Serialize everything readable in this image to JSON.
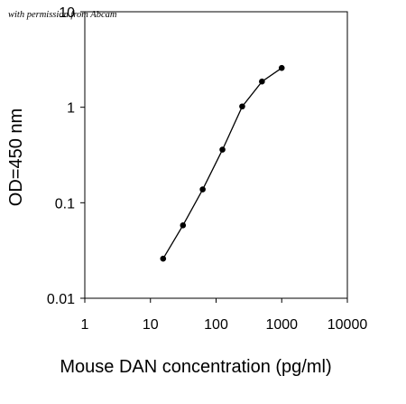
{
  "watermark": "with permission from Abcam",
  "colors": {
    "axis": "#000000",
    "line": "#000000",
    "marker": "#000000",
    "background": "#ffffff"
  },
  "chart_data": {
    "type": "line",
    "title": "",
    "xlabel": "Mouse DAN concentration (pg/ml)",
    "ylabel": "OD=450 nm",
    "xscale": "log",
    "yscale": "log",
    "xlim": [
      1,
      10000
    ],
    "ylim": [
      0.01,
      10
    ],
    "xticks": [
      1,
      10,
      100,
      1000,
      10000
    ],
    "xtick_labels": [
      "1",
      "10",
      "100",
      "1000",
      "10000"
    ],
    "yticks": [
      0.01,
      0.1,
      1,
      10
    ],
    "ytick_labels": [
      "0.01",
      "0.1",
      "1",
      "10"
    ],
    "grid": false,
    "legend": "none",
    "series": [
      {
        "x": [
          15.6,
          31.3,
          62.5,
          125,
          250,
          500,
          1000
        ],
        "y": [
          0.026,
          0.058,
          0.138,
          0.36,
          1.02,
          1.86,
          2.58
        ]
      }
    ]
  }
}
